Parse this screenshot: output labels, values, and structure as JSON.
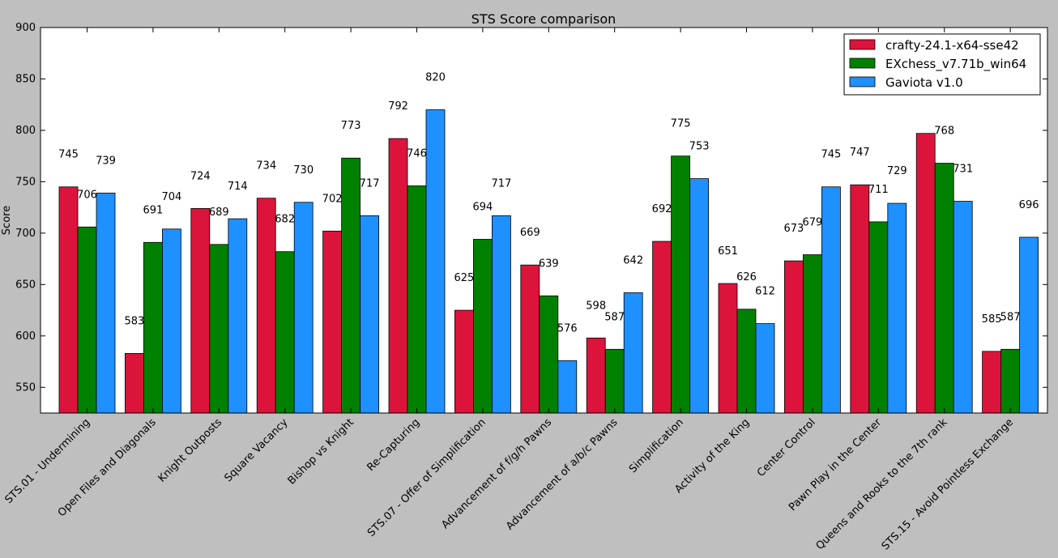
{
  "chart_data": {
    "type": "bar",
    "title": "STS Score comparison",
    "xlabel": "",
    "ylabel": "Score",
    "ylim": [
      525,
      900
    ],
    "yticks": [
      550,
      600,
      650,
      700,
      750,
      800,
      850,
      900
    ],
    "grid": false,
    "legend_position": "top-right",
    "categories": [
      "STS.01 - Undermining",
      "Open Files and Diagonals",
      "Knight Outposts",
      "Square Vacancy",
      "Bishop vs Knight",
      "Re-Capturing",
      "STS.07 - Offer of Simplification",
      "Advancement of f/g/h Pawns",
      "Advancement of a/b/c Pawns",
      "Simplification",
      "Activity of the King",
      "Center Control",
      "Pawn Play in the Center",
      "Queens and Rooks to the 7th rank",
      "STS.15 - Avoid Pointless Exchange"
    ],
    "series": [
      {
        "name": "crafty-24.1-x64-sse42",
        "color": "#dc143c",
        "values": [
          745,
          583,
          724,
          734,
          702,
          792,
          625,
          669,
          598,
          692,
          651,
          673,
          747,
          797,
          585
        ],
        "labels": [
          "745",
          "583",
          "724",
          "734",
          "702",
          "792",
          "625",
          "669",
          "598",
          "692",
          "651",
          "673",
          "747",
          "",
          "585"
        ]
      },
      {
        "name": "EXchess_v7.71b_win64",
        "color": "#008000",
        "values": [
          706,
          691,
          689,
          682,
          773,
          746,
          694,
          639,
          587,
          775,
          626,
          679,
          711,
          768,
          587
        ],
        "labels": [
          "706",
          "691",
          "689",
          "682",
          "773",
          "746",
          "694",
          "639",
          "587",
          "775",
          "626",
          "679",
          "711",
          "768",
          "587"
        ]
      },
      {
        "name": "Gaviota v1.0",
        "color": "#1e90ff",
        "values": [
          739,
          704,
          714,
          730,
          717,
          820,
          717,
          576,
          642,
          753,
          612,
          745,
          729,
          731,
          696
        ],
        "labels": [
          "739",
          "704",
          "714",
          "730",
          "717",
          "820",
          "717",
          "576",
          "642",
          "753",
          "612",
          "745",
          "729",
          "731",
          "696"
        ]
      }
    ]
  }
}
